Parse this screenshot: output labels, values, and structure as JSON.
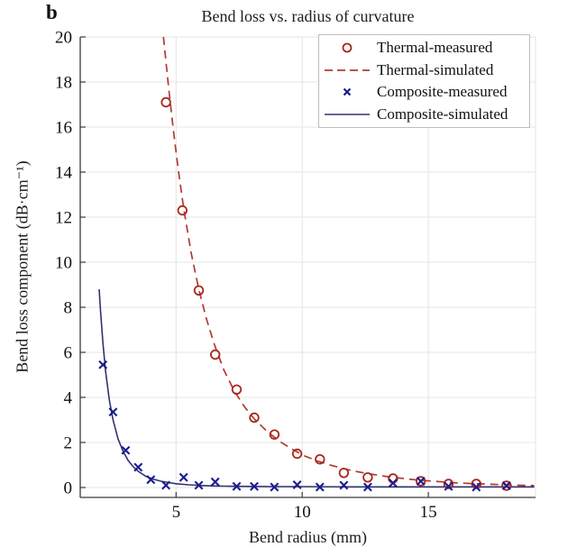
{
  "panel_label": "b",
  "chart_data": {
    "type": "line",
    "title": "Bend loss vs. radius of curvature",
    "xlabel": "Bend radius (mm)",
    "ylabel": "Bend loss component (dB·cm⁻¹)",
    "xlim": [
      1.2,
      19.25
    ],
    "ylim": [
      -0.44,
      20
    ],
    "xticks": [
      5,
      10,
      15
    ],
    "yticks": [
      0,
      2,
      4,
      6,
      8,
      10,
      12,
      14,
      16,
      18,
      20
    ],
    "grid": true,
    "grid_color": "#e4e4e4",
    "spine_color": "#3a3a3a",
    "legend_position": "top-right",
    "series": [
      {
        "name": "Thermal-measured",
        "type": "scatter",
        "marker": "circle",
        "color": "#a8281e",
        "points": [
          [
            4.6,
            17.1
          ],
          [
            5.25,
            12.3
          ],
          [
            5.9,
            8.75
          ],
          [
            6.55,
            5.9
          ],
          [
            7.4,
            4.35
          ],
          [
            8.1,
            3.1
          ],
          [
            8.9,
            2.35
          ],
          [
            9.8,
            1.5
          ],
          [
            10.7,
            1.25
          ],
          [
            11.65,
            0.65
          ],
          [
            12.6,
            0.45
          ],
          [
            13.6,
            0.4
          ],
          [
            14.7,
            0.28
          ],
          [
            15.8,
            0.16
          ],
          [
            16.9,
            0.16
          ],
          [
            18.1,
            0.08
          ]
        ]
      },
      {
        "name": "Thermal-simulated",
        "type": "line",
        "style": "dashed",
        "color": "#b23a30",
        "points": [
          [
            4.5,
            20
          ],
          [
            4.7,
            17.8
          ],
          [
            4.9,
            15.8
          ],
          [
            5.1,
            14.0
          ],
          [
            5.3,
            12.4
          ],
          [
            5.6,
            10.4
          ],
          [
            5.9,
            8.8
          ],
          [
            6.2,
            7.5
          ],
          [
            6.5,
            6.4
          ],
          [
            6.9,
            5.2
          ],
          [
            7.3,
            4.3
          ],
          [
            7.7,
            3.6
          ],
          [
            8.1,
            3.05
          ],
          [
            8.6,
            2.5
          ],
          [
            9.1,
            2.05
          ],
          [
            9.6,
            1.7
          ],
          [
            10.1,
            1.4
          ],
          [
            10.6,
            1.18
          ],
          [
            11.1,
            1.0
          ],
          [
            11.6,
            0.85
          ],
          [
            12.1,
            0.72
          ],
          [
            12.6,
            0.62
          ],
          [
            13.1,
            0.53
          ],
          [
            13.6,
            0.45
          ],
          [
            14.1,
            0.39
          ],
          [
            14.6,
            0.33
          ],
          [
            15.1,
            0.29
          ],
          [
            15.6,
            0.25
          ],
          [
            16.1,
            0.21
          ],
          [
            16.6,
            0.18
          ],
          [
            17.1,
            0.16
          ],
          [
            17.6,
            0.14
          ],
          [
            18.1,
            0.12
          ],
          [
            18.6,
            0.1
          ],
          [
            19.2,
            0.09
          ]
        ]
      },
      {
        "name": "Composite-measured",
        "type": "scatter",
        "marker": "x",
        "color": "#1c1c90",
        "points": [
          [
            2.1,
            5.45
          ],
          [
            2.5,
            3.35
          ],
          [
            3.0,
            1.65
          ],
          [
            3.5,
            0.9
          ],
          [
            4.0,
            0.35
          ],
          [
            4.6,
            0.1
          ],
          [
            5.3,
            0.45
          ],
          [
            5.9,
            0.1
          ],
          [
            6.55,
            0.25
          ],
          [
            7.4,
            0.05
          ],
          [
            8.1,
            0.05
          ],
          [
            8.9,
            0.02
          ],
          [
            9.8,
            0.12
          ],
          [
            10.7,
            0.02
          ],
          [
            11.65,
            0.1
          ],
          [
            12.6,
            0.02
          ],
          [
            13.6,
            0.2
          ],
          [
            14.7,
            0.28
          ],
          [
            15.8,
            0.05
          ],
          [
            16.9,
            0.02
          ],
          [
            18.1,
            0.08
          ]
        ]
      },
      {
        "name": "Composite-simulated",
        "type": "line",
        "style": "solid",
        "color": "#32326e",
        "points": [
          [
            1.95,
            8.8
          ],
          [
            2.0,
            7.9
          ],
          [
            2.1,
            6.4
          ],
          [
            2.2,
            5.2
          ],
          [
            2.35,
            3.9
          ],
          [
            2.5,
            3.0
          ],
          [
            2.7,
            2.15
          ],
          [
            2.9,
            1.6
          ],
          [
            3.1,
            1.2
          ],
          [
            3.3,
            0.92
          ],
          [
            3.5,
            0.72
          ],
          [
            3.8,
            0.5
          ],
          [
            4.1,
            0.37
          ],
          [
            4.4,
            0.28
          ],
          [
            4.7,
            0.22
          ],
          [
            5.0,
            0.17
          ],
          [
            5.5,
            0.12
          ],
          [
            6.0,
            0.09
          ],
          [
            6.5,
            0.07
          ],
          [
            7.0,
            0.06
          ],
          [
            8.0,
            0.05
          ],
          [
            9.0,
            0.04
          ],
          [
            10.0,
            0.04
          ],
          [
            12.0,
            0.03
          ],
          [
            14.0,
            0.03
          ],
          [
            16.0,
            0.03
          ],
          [
            18.0,
            0.03
          ],
          [
            19.2,
            0.03
          ]
        ]
      }
    ]
  }
}
